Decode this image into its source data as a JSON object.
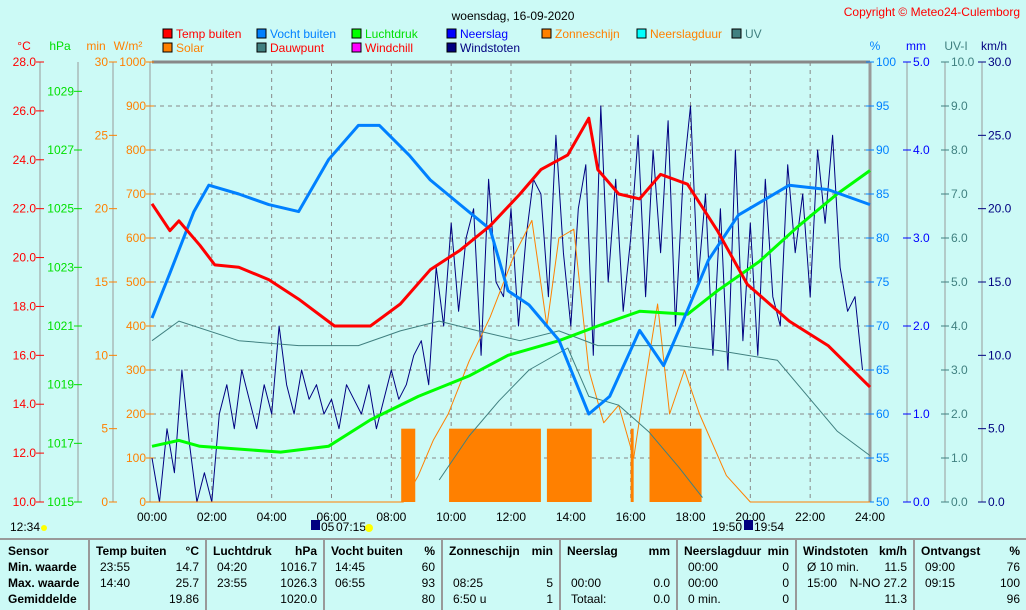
{
  "title": "woensdag, 16-09-2020",
  "copyright": "Copyright © Meteo24-Culemborg",
  "legend": [
    {
      "label": "Temp buiten",
      "color": "#ff0000",
      "text": "#ff0000"
    },
    {
      "label": "Solar",
      "color": "#ff8000",
      "text": "#ff8000"
    },
    {
      "label": "Vocht buiten",
      "color": "#0080ff",
      "text": "#0080ff"
    },
    {
      "label": "Dauwpunt",
      "color": "#408080",
      "text": "#ff0000"
    },
    {
      "label": "Luchtdruk",
      "color": "#00ff00",
      "text": "#00e000"
    },
    {
      "label": "Windchill",
      "color": "#ff00ff",
      "text": "#ff0000"
    },
    {
      "label": "Neerslag",
      "color": "#0000ff",
      "text": "#0000ff"
    },
    {
      "label": "Windstoten",
      "color": "#000080",
      "text": "#000080"
    },
    {
      "label": "Zonneschijn",
      "color": "#ff8000",
      "text": "#ff8000"
    },
    {
      "label": "Neerslagduur",
      "color": "#00ffff",
      "text": "#ff8000"
    },
    {
      "label": "UV",
      "color": "#408080",
      "text": "#408080"
    }
  ],
  "axes": {
    "left": [
      {
        "unit": "°C",
        "color": "#ff0000",
        "ticks": [
          "28.0",
          "26.0",
          "24.0",
          "22.0",
          "20.0",
          "18.0",
          "16.0",
          "14.0",
          "12.0",
          "10.0"
        ]
      },
      {
        "unit": "hPa",
        "color": "#00e000",
        "ticks": [
          "1029",
          "1027",
          "1025",
          "1023",
          "1021",
          "1019",
          "1017",
          "1015"
        ]
      },
      {
        "unit": "min",
        "color": "#ff8000",
        "ticks": [
          "30",
          "25",
          "20",
          "15",
          "10",
          "5",
          "0"
        ]
      },
      {
        "unit": "W/m²",
        "color": "#ff8000",
        "ticks": [
          "1000",
          "900",
          "800",
          "700",
          "600",
          "500",
          "400",
          "300",
          "200",
          "100",
          "0"
        ]
      }
    ],
    "right": [
      {
        "unit": "%",
        "color": "#0080ff",
        "ticks": [
          "100",
          "95",
          "90",
          "85",
          "80",
          "75",
          "70",
          "65",
          "60",
          "55",
          "50"
        ]
      },
      {
        "unit": "mm",
        "color": "#0000ff",
        "ticks": [
          "5.0",
          "4.0",
          "3.0",
          "2.0",
          "1.0",
          "0.0"
        ]
      },
      {
        "unit": "UV-I",
        "color": "#408080",
        "ticks": [
          "10.0",
          "9.0",
          "8.0",
          "7.0",
          "6.0",
          "5.0",
          "4.0",
          "3.0",
          "2.0",
          "1.0",
          "0.0"
        ]
      },
      {
        "unit": "km/h",
        "color": "#000080",
        "ticks": [
          "30.0",
          "25.0",
          "20.0",
          "15.0",
          "10.0",
          "5.0",
          "0.0"
        ]
      }
    ],
    "x_ticks": [
      "00:00",
      "02:00",
      "04:00",
      "06:00",
      "08:00",
      "10:00",
      "12:00",
      "14:00",
      "16:00",
      "18:00",
      "20:00",
      "22:00",
      "24:00"
    ]
  },
  "astro": {
    "moonset": "12:34",
    "moonrise": "05",
    "sunrise": "07:15",
    "sunset": "19:50",
    "moonrise2": "19:54"
  },
  "chart_data": {
    "type": "line",
    "title": "woensdag, 16-09-2020",
    "xlim": [
      0,
      24
    ],
    "series": [
      {
        "name": "Temp buiten",
        "unit": "°C",
        "range": [
          10,
          28
        ],
        "color": "#ff0000",
        "x": [
          0,
          0.6,
          0.9,
          1.6,
          2.1,
          2.9,
          3.9,
          4.9,
          6.1,
          7.3,
          8.3,
          9.3,
          10.3,
          11.3,
          12.3,
          13,
          13.9,
          14.6,
          14.9,
          15.6,
          16.3,
          17,
          17.9,
          18.9,
          19.9,
          21.3,
          22.6,
          24
        ],
        "y": [
          22.2,
          21.1,
          21.5,
          20.5,
          19.7,
          19.6,
          19.1,
          18.3,
          17.2,
          17.2,
          18.1,
          19.5,
          20.3,
          21.3,
          22.6,
          23.6,
          24.2,
          25.7,
          23.6,
          22.6,
          22.4,
          23.4,
          23.0,
          21.1,
          18.9,
          17.4,
          16.4,
          14.7
        ]
      },
      {
        "name": "Vocht buiten",
        "unit": "%",
        "range": [
          50,
          100
        ],
        "color": "#0080ff",
        "x": [
          0,
          0.6,
          1.4,
          1.9,
          2.9,
          3.9,
          4.9,
          5.9,
          6.9,
          7.6,
          8.6,
          9.3,
          10.3,
          11.3,
          11.9,
          12.6,
          13.6,
          14.6,
          15.3,
          16.3,
          17.1,
          17.9,
          18.6,
          19.6,
          21.3,
          22.6,
          24
        ],
        "y": [
          70.9,
          76,
          83,
          86,
          85,
          83.8,
          83,
          88.9,
          92.8,
          92.8,
          89.4,
          86.6,
          83.8,
          81,
          74,
          72.4,
          68.4,
          60,
          62,
          69.5,
          65.5,
          71.8,
          77.5,
          82.6,
          86,
          85.5,
          83.8
        ]
      },
      {
        "name": "Luchtdruk",
        "unit": "hPa",
        "range": [
          1015,
          1030
        ],
        "color": "#00ff00",
        "x": [
          0,
          0.9,
          1.6,
          4.3,
          5.9,
          7.3,
          8.9,
          10.6,
          11.9,
          13.6,
          14.9,
          16.3,
          17.9,
          18.9,
          20.3,
          21.6,
          22.9,
          24
        ],
        "y": [
          1016.9,
          1017.1,
          1016.9,
          1016.7,
          1016.9,
          1017.8,
          1018.6,
          1019.3,
          1020,
          1020.5,
          1021,
          1021.5,
          1021.4,
          1022.2,
          1023.2,
          1024.4,
          1025.5,
          1026.3
        ]
      },
      {
        "name": "Dauwpunt",
        "unit": "°C",
        "range": [
          10,
          28
        ],
        "color": "#408080",
        "x": [
          0,
          0.9,
          2.9,
          4.9,
          6.9,
          8.3,
          9.6,
          10.9,
          12.3,
          13.6,
          14.9,
          16.3,
          17.6,
          18.9,
          20.9,
          22.9,
          24
        ],
        "y": [
          16.6,
          17.4,
          16.6,
          16.4,
          16.4,
          17,
          17.4,
          17,
          16.6,
          17,
          16.4,
          16.4,
          16.4,
          16.2,
          15.8,
          12.9,
          11.9
        ]
      },
      {
        "name": "UV",
        "unit": "UV-I",
        "range": [
          0,
          10
        ],
        "color": "#408080",
        "x": [
          9.6,
          10.6,
          11.6,
          12.6,
          13.9,
          14.6,
          15.6,
          16.6,
          17.6,
          18.4
        ],
        "y": [
          0.5,
          1.5,
          2.3,
          3.0,
          3.5,
          2.4,
          2.2,
          1.6,
          0.8,
          0.1
        ]
      },
      {
        "name": "Solar",
        "unit": "W/m²",
        "range": [
          0,
          1000
        ],
        "color": "#ff8000",
        "x": [
          0,
          8.4,
          8.9,
          9.4,
          9.9,
          10.6,
          11.3,
          12.1,
          12.7,
          13.2,
          13.6,
          14.1,
          14.6,
          15.1,
          15.6,
          16.1,
          16.5,
          16.9,
          17.3,
          17.8,
          18.3,
          19.2,
          20,
          24
        ],
        "y": [
          0,
          0,
          60,
          140,
          200,
          320,
          420,
          560,
          640,
          400,
          600,
          620,
          300,
          180,
          220,
          100,
          280,
          450,
          200,
          300,
          200,
          60,
          0,
          0
        ]
      },
      {
        "name": "Windstoten",
        "unit": "km/h",
        "range": [
          0,
          30
        ],
        "color": "#000080",
        "interval_min": 15,
        "y": [
          3,
          0,
          5,
          2,
          9,
          4,
          0,
          2,
          0,
          6,
          8,
          5,
          9,
          7,
          5,
          8,
          6,
          12,
          8,
          6,
          9,
          7,
          8,
          6,
          7,
          5,
          8,
          7,
          6,
          8,
          5,
          7,
          9,
          7,
          8,
          10,
          11,
          8,
          16,
          12,
          19,
          13,
          18,
          20,
          10,
          22,
          15,
          14,
          20,
          12,
          18,
          22,
          21,
          14,
          25,
          17,
          12,
          20,
          23,
          10,
          27,
          15,
          22,
          13,
          18,
          25,
          14,
          24,
          17,
          26,
          12,
          22,
          27,
          15,
          21,
          10,
          20,
          9,
          24,
          11,
          19,
          10,
          22,
          14,
          12,
          23,
          17,
          21,
          14,
          24,
          19,
          25,
          16,
          13,
          14,
          9
        ]
      }
    ],
    "zonneschijn_blocks": {
      "unit": "min",
      "value": 5,
      "intervals": [
        [
          8.33,
          8.8
        ],
        [
          9.93,
          13
        ],
        [
          13.2,
          14.7
        ],
        [
          16,
          16.1
        ],
        [
          16.63,
          18.37
        ]
      ]
    }
  },
  "table": {
    "row_labels": [
      "Sensor",
      "Min. waarde",
      "Max. waarde",
      "Gemiddelde"
    ],
    "columns": [
      {
        "name": "Temp buiten",
        "unit": "°C",
        "rows": [
          [
            "23:55",
            "14.7"
          ],
          [
            "14:40",
            "25.7"
          ],
          [
            "",
            "19.86"
          ]
        ]
      },
      {
        "name": "Luchtdruk",
        "unit": "hPa",
        "rows": [
          [
            "04:20",
            "1016.7"
          ],
          [
            "23:55",
            "1026.3"
          ],
          [
            "",
            "1020.0"
          ]
        ]
      },
      {
        "name": "Vocht buiten",
        "unit": "%",
        "rows": [
          [
            "14:45",
            "60"
          ],
          [
            "06:55",
            "93"
          ],
          [
            "",
            "80"
          ]
        ]
      },
      {
        "name": "Zonneschijn",
        "unit": "min",
        "rows": [
          [
            "",
            ""
          ],
          [
            "08:25",
            "5"
          ],
          [
            "6:50 u",
            "1"
          ]
        ]
      },
      {
        "name": "Neerslag",
        "unit": "mm",
        "rows": [
          [
            "",
            ""
          ],
          [
            "00:00",
            "0.0"
          ],
          [
            "Totaal:",
            "0.0"
          ]
        ]
      },
      {
        "name": "Neerslagduur",
        "unit": "min",
        "rows": [
          [
            "00:00",
            "0"
          ],
          [
            "00:00",
            "0"
          ],
          [
            "0 min.",
            "0"
          ]
        ]
      },
      {
        "name": "Windstoten",
        "unit": "km/h",
        "rows": [
          [
            "Ø 10 min.",
            "11.5"
          ],
          [
            "15:00",
            "N-NO 27.2"
          ],
          [
            "",
            "11.3"
          ]
        ]
      },
      {
        "name": "Ontvangst",
        "unit": "%",
        "rows": [
          [
            "09:00",
            "76"
          ],
          [
            "09:15",
            "100"
          ],
          [
            "",
            "96"
          ]
        ]
      }
    ]
  }
}
